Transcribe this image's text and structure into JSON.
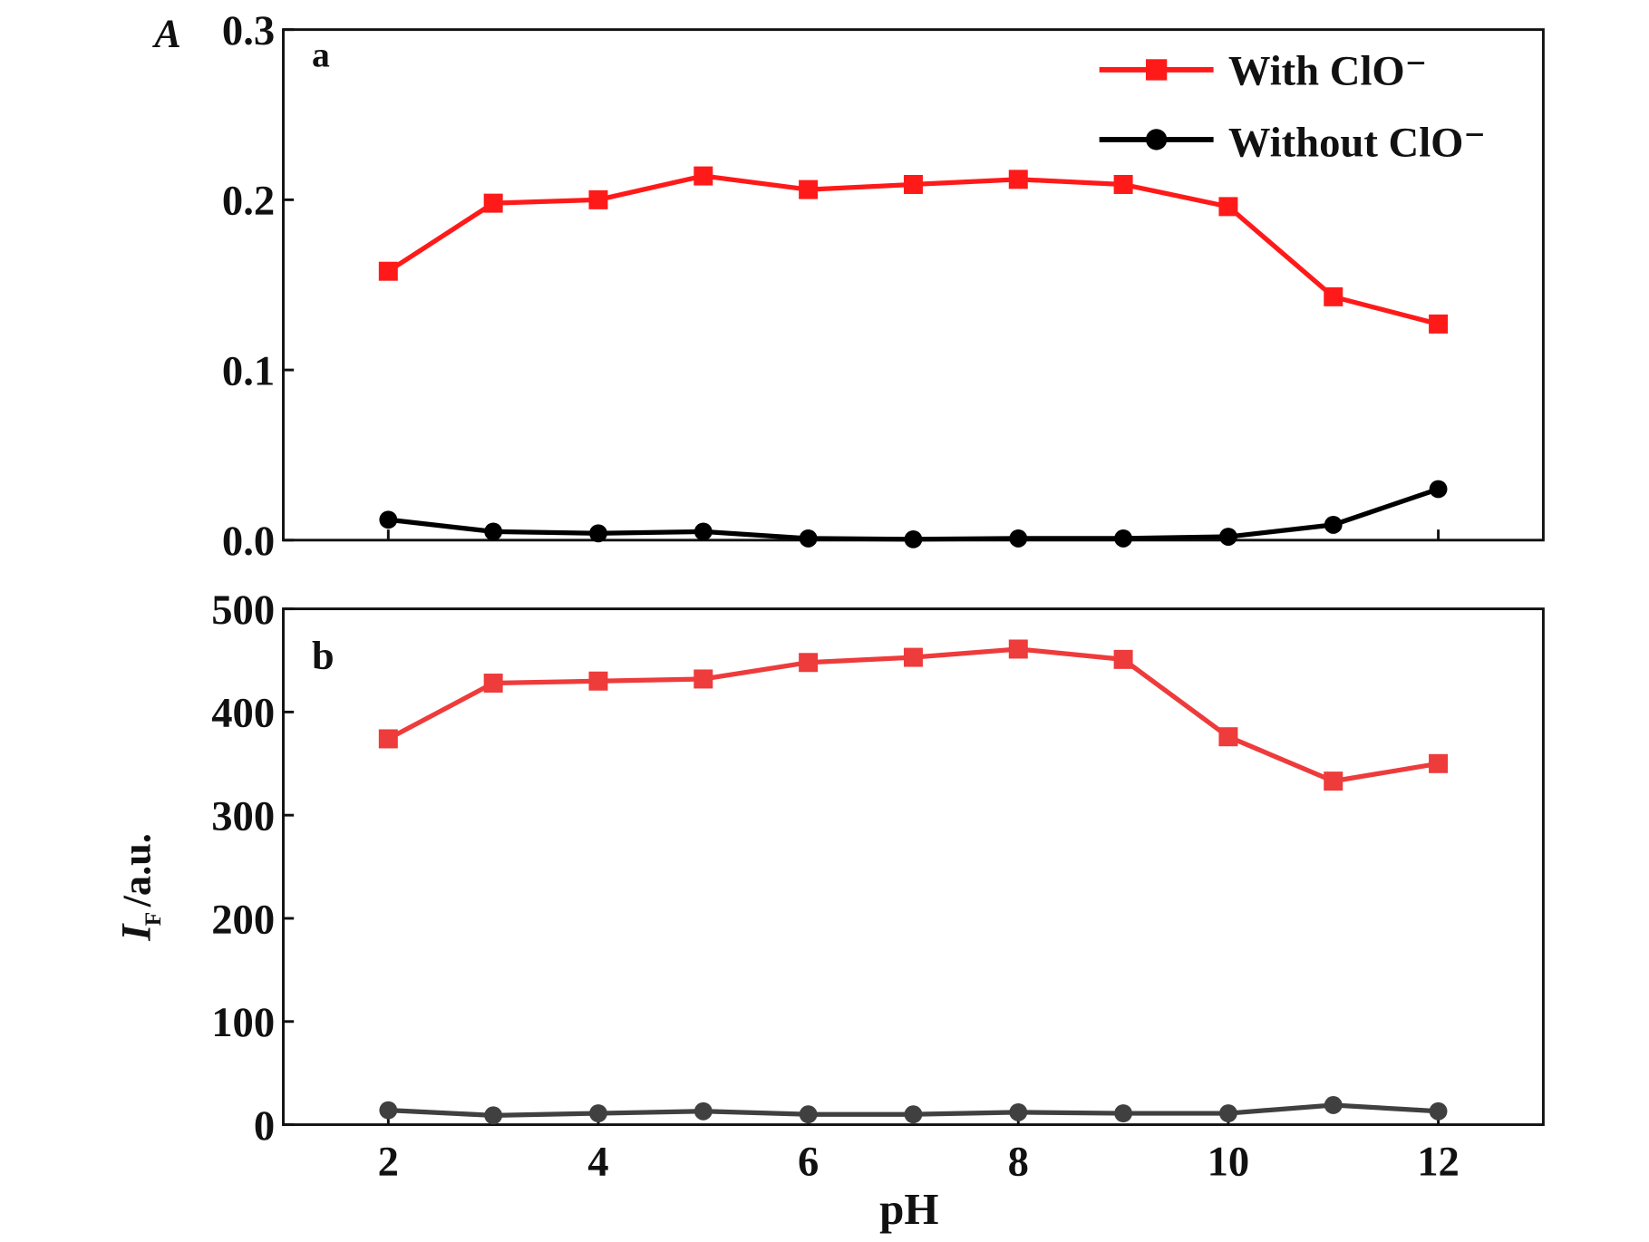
{
  "chart_data": [
    {
      "type": "line",
      "panel_label": "a",
      "ylabel": "A",
      "ylim": [
        0,
        0.3
      ],
      "yticks": [
        "0.0",
        "0.1",
        "0.2",
        "0.3"
      ],
      "xlim": [
        1,
        13
      ],
      "x": [
        2,
        3,
        4,
        5,
        6,
        7,
        8,
        9,
        10,
        11,
        12
      ],
      "legend": "top-right",
      "series": [
        {
          "name": "With ClO⁻",
          "color": "#ff1a1a",
          "marker": "square",
          "values": [
            0.158,
            0.198,
            0.2,
            0.214,
            0.206,
            0.209,
            0.212,
            0.209,
            0.196,
            0.143,
            0.127
          ]
        },
        {
          "name": "Without ClO⁻",
          "color": "#000000",
          "marker": "circle",
          "values": [
            0.012,
            0.005,
            0.004,
            0.005,
            0.001,
            0.0005,
            0.001,
            0.001,
            0.002,
            0.009,
            0.03
          ]
        }
      ]
    },
    {
      "type": "line",
      "panel_label": "b",
      "ylabel": "I",
      "ylabel_sub": "F",
      "ylabel_unit": "/a.u.",
      "ylim": [
        0,
        500
      ],
      "yticks": [
        "0",
        "100",
        "200",
        "300",
        "400",
        "500"
      ],
      "xlim": [
        1,
        13
      ],
      "xlabel": "pH",
      "xticks": [
        "2",
        "4",
        "6",
        "8",
        "10",
        "12"
      ],
      "x": [
        2,
        3,
        4,
        5,
        6,
        7,
        8,
        9,
        10,
        11,
        12
      ],
      "series": [
        {
          "color": "#ee3b3b",
          "marker": "square",
          "values": [
            374,
            428,
            430,
            432,
            448,
            453,
            461,
            451,
            376,
            333,
            350
          ]
        },
        {
          "color": "#404040",
          "marker": "circle",
          "values": [
            14,
            9,
            11,
            13,
            10,
            10,
            12,
            11,
            11,
            19,
            13
          ]
        }
      ]
    }
  ]
}
